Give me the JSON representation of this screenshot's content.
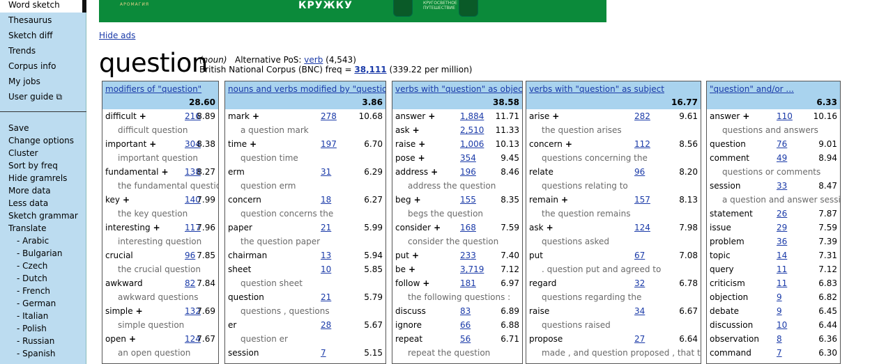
{
  "nav": {
    "items": [
      "Word sketch",
      "Thesaurus",
      "Sketch diff",
      "Trends",
      "Corpus info",
      "My jobs",
      "User guide ⧉"
    ],
    "options": [
      "Save",
      "Change options",
      "Cluster",
      "Sort by freq",
      "Hide gramrels",
      "More data",
      "Less data",
      "Sketch grammar",
      "Translate"
    ],
    "languages": [
      "- Arabic",
      "- Bulgarian",
      "- Czech",
      "- Dutch",
      "- French",
      "- German",
      "- Italian",
      "- Polish",
      "- Russian",
      "- Spanish"
    ]
  },
  "ad": {
    "brand": "АРОМАГИЯ",
    "slogan": "КРУЖКУ",
    "cup_text": "КРУГОСВЕТНОЕ ПУТЕШЕСТВИЕ"
  },
  "hide_ads": "Hide ads",
  "headword": {
    "word": "question",
    "pos": "(noun)",
    "alt_pos_label": "Alternative PoS:",
    "alt_pos_link": "verb",
    "alt_pos_count": "(4,543)",
    "corpus_label": "British National Corpus (BNC) freq =",
    "freq": "38,111",
    "per_million": "(339.22 per million)"
  },
  "columns": [
    {
      "title": "modifiers of \"question\"",
      "score": "28.60",
      "rows": [
        {
          "word": "difficult",
          "plus": "+",
          "freq": "216",
          "score": "8.89",
          "example": "difficult question"
        },
        {
          "word": "important",
          "plus": "+",
          "freq": "304",
          "score": "8.38",
          "example": "important question"
        },
        {
          "word": "fundamental",
          "plus": "+",
          "freq": "138",
          "score": "8.27",
          "example": "the fundamental question"
        },
        {
          "word": "key",
          "plus": "+",
          "freq": "140",
          "score": "7.99",
          "example": "the key question"
        },
        {
          "word": "interesting",
          "plus": "+",
          "freq": "117",
          "score": "7.96",
          "example": "interesting question"
        },
        {
          "word": "crucial",
          "plus": "",
          "freq": "96",
          "score": "7.85",
          "example": "the crucial question"
        },
        {
          "word": "awkward",
          "plus": "",
          "freq": "82",
          "score": "7.84",
          "example": "awkward questions"
        },
        {
          "word": "simple",
          "plus": "+",
          "freq": "132",
          "score": "7.69",
          "example": "simple question"
        },
        {
          "word": "open",
          "plus": "+",
          "freq": "124",
          "score": "7.67",
          "example": "an open question"
        }
      ]
    },
    {
      "title": "nouns and verbs modified by \"question\"",
      "score": "3.86",
      "rows": [
        {
          "word": "mark",
          "plus": "+",
          "freq": "278",
          "score": "10.68",
          "example": "a question mark"
        },
        {
          "word": "time",
          "plus": "+",
          "freq": "197",
          "score": "6.70",
          "example": "question time"
        },
        {
          "word": "erm",
          "plus": "",
          "freq": "31",
          "score": "6.29",
          "example": "question erm"
        },
        {
          "word": "concern",
          "plus": "",
          "freq": "18",
          "score": "6.27",
          "example": "question concerns the"
        },
        {
          "word": "paper",
          "plus": "",
          "freq": "21",
          "score": "5.99",
          "example": "the question paper"
        },
        {
          "word": "chairman",
          "plus": "",
          "freq": "13",
          "score": "5.94",
          "example": ""
        },
        {
          "word": "sheet",
          "plus": "",
          "freq": "10",
          "score": "5.85",
          "example": "question sheet"
        },
        {
          "word": "question",
          "plus": "",
          "freq": "21",
          "score": "5.79",
          "example": "questions , questions"
        },
        {
          "word": "er",
          "plus": "",
          "freq": "28",
          "score": "5.67",
          "example": "question er"
        },
        {
          "word": "session",
          "plus": "",
          "freq": "7",
          "score": "5.15",
          "example": ""
        }
      ]
    },
    {
      "title": "verbs with \"question\" as object",
      "score": "38.58",
      "rows": [
        {
          "word": "answer",
          "plus": "+",
          "freq": "1,884",
          "score": "11.71",
          "example": ""
        },
        {
          "word": "ask",
          "plus": "+",
          "freq": "2,510",
          "score": "11.33",
          "example": ""
        },
        {
          "word": "raise",
          "plus": "+",
          "freq": "1,006",
          "score": "10.13",
          "example": ""
        },
        {
          "word": "pose",
          "plus": "+",
          "freq": "354",
          "score": "9.45",
          "example": ""
        },
        {
          "word": "address",
          "plus": "+",
          "freq": "196",
          "score": "8.46",
          "example": "address the question"
        },
        {
          "word": "beg",
          "plus": "+",
          "freq": "155",
          "score": "8.35",
          "example": "begs the question"
        },
        {
          "word": "consider",
          "plus": "+",
          "freq": "168",
          "score": "7.59",
          "example": "consider the question"
        },
        {
          "word": "put",
          "plus": "+",
          "freq": "233",
          "score": "7.40",
          "example": ""
        },
        {
          "word": "be",
          "plus": "+",
          "freq": "3,719",
          "score": "7.12",
          "example": ""
        },
        {
          "word": "follow",
          "plus": "+",
          "freq": "181",
          "score": "6.97",
          "example": "the following questions :"
        },
        {
          "word": "discuss",
          "plus": "",
          "freq": "83",
          "score": "6.89",
          "example": ""
        },
        {
          "word": "ignore",
          "plus": "",
          "freq": "66",
          "score": "6.88",
          "example": ""
        },
        {
          "word": "repeat",
          "plus": "",
          "freq": "56",
          "score": "6.71",
          "example": "repeat the question"
        }
      ]
    },
    {
      "title": "verbs with \"question\" as subject",
      "score": "16.77",
      "rows": [
        {
          "word": "arise",
          "plus": "+",
          "freq": "282",
          "score": "9.61",
          "example": "the question arises"
        },
        {
          "word": "concern",
          "plus": "+",
          "freq": "112",
          "score": "8.56",
          "example": "questions concerning the"
        },
        {
          "word": "relate",
          "plus": "",
          "freq": "96",
          "score": "8.20",
          "example": "questions relating to"
        },
        {
          "word": "remain",
          "plus": "+",
          "freq": "157",
          "score": "8.13",
          "example": "the question remains"
        },
        {
          "word": "ask",
          "plus": "+",
          "freq": "124",
          "score": "7.98",
          "example": "questions asked"
        },
        {
          "word": "put",
          "plus": "",
          "freq": "67",
          "score": "7.08",
          "example": ". question put and agreed to"
        },
        {
          "word": "regard",
          "plus": "",
          "freq": "32",
          "score": "6.78",
          "example": "questions regarding the"
        },
        {
          "word": "raise",
          "plus": "",
          "freq": "34",
          "score": "6.67",
          "example": "questions raised"
        },
        {
          "word": "propose",
          "plus": "",
          "freq": "27",
          "score": "6.64",
          "example": "made , and question proposed , that this"
        }
      ]
    },
    {
      "title": "\"question\" and/or ...",
      "score": "6.33",
      "rows": [
        {
          "word": "answer",
          "plus": "+",
          "freq": "110",
          "score": "10.16",
          "example": "questions and answers"
        },
        {
          "word": "question",
          "plus": "",
          "freq": "76",
          "score": "9.01",
          "example": ""
        },
        {
          "word": "comment",
          "plus": "",
          "freq": "49",
          "score": "8.94",
          "example": "questions or comments"
        },
        {
          "word": "session",
          "plus": "",
          "freq": "33",
          "score": "8.47",
          "example": "a question and answer session"
        },
        {
          "word": "statement",
          "plus": "",
          "freq": "26",
          "score": "7.87",
          "example": ""
        },
        {
          "word": "issue",
          "plus": "",
          "freq": "29",
          "score": "7.59",
          "example": ""
        },
        {
          "word": "problem",
          "plus": "",
          "freq": "36",
          "score": "7.39",
          "example": ""
        },
        {
          "word": "topic",
          "plus": "",
          "freq": "14",
          "score": "7.31",
          "example": ""
        },
        {
          "word": "query",
          "plus": "",
          "freq": "11",
          "score": "7.12",
          "example": ""
        },
        {
          "word": "criticism",
          "plus": "",
          "freq": "11",
          "score": "6.83",
          "example": ""
        },
        {
          "word": "objection",
          "plus": "",
          "freq": "9",
          "score": "6.82",
          "example": ""
        },
        {
          "word": "debate",
          "plus": "",
          "freq": "9",
          "score": "6.45",
          "example": ""
        },
        {
          "word": "discussion",
          "plus": "",
          "freq": "10",
          "score": "6.44",
          "example": ""
        },
        {
          "word": "observation",
          "plus": "",
          "freq": "8",
          "score": "6.36",
          "example": ""
        },
        {
          "word": "command",
          "plus": "",
          "freq": "7",
          "score": "6.30",
          "example": ""
        }
      ]
    }
  ]
}
